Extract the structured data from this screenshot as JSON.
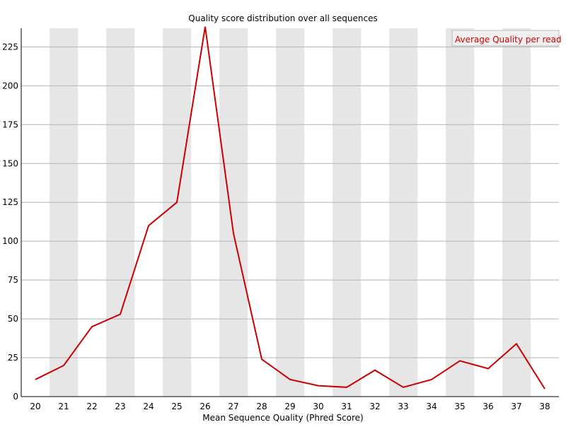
{
  "chart_data": {
    "type": "line",
    "title": "Quality score distribution over all sequences",
    "xlabel": "Mean Sequence Quality (Phred Score)",
    "ylabel": "",
    "categories": [
      "20",
      "21",
      "22",
      "23",
      "24",
      "25",
      "26",
      "27",
      "28",
      "29",
      "30",
      "31",
      "32",
      "33",
      "34",
      "35",
      "36",
      "37",
      "38"
    ],
    "series": [
      {
        "name": "Average Quality per read",
        "color": "#cc0000",
        "values": [
          11,
          20,
          45,
          53,
          110,
          125,
          238,
          105,
          24,
          11,
          7,
          6,
          17,
          6,
          11,
          23,
          18,
          34,
          5
        ]
      }
    ],
    "ylim": [
      0,
      237
    ],
    "yticks": [
      0,
      25,
      50,
      75,
      100,
      125,
      150,
      175,
      200,
      225
    ],
    "grid": true,
    "band_color": "#e6e6e6",
    "legend_position": "top-right"
  }
}
